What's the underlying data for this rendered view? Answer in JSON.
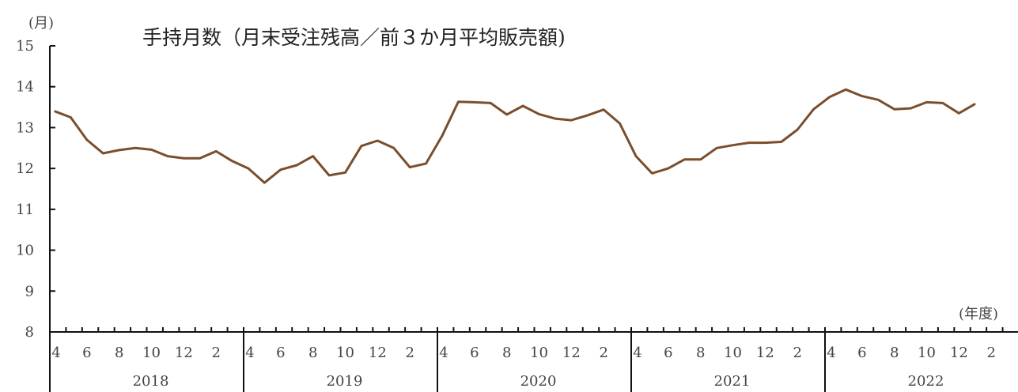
{
  "chart_data": {
    "type": "line",
    "title": "手持月数（月末受注残高／前３か月平均販売額)",
    "ylabel": "(月)",
    "xlabel": "(年度)",
    "ylim": [
      8,
      15
    ],
    "yticks": [
      8,
      9,
      10,
      11,
      12,
      13,
      14,
      15
    ],
    "grid": false,
    "fiscal_years": [
      "2018",
      "2019",
      "2020",
      "2021",
      "2022"
    ],
    "month_ticks": [
      "4",
      "6",
      "8",
      "10",
      "12",
      "2"
    ],
    "series": [
      {
        "color": "#7a4e2d",
        "points": [
          {
            "fy": "2018",
            "m": 4,
            "v": 13.4
          },
          {
            "fy": "2018",
            "m": 5,
            "v": 13.25
          },
          {
            "fy": "2018",
            "m": 6,
            "v": 12.7
          },
          {
            "fy": "2018",
            "m": 7,
            "v": 12.37
          },
          {
            "fy": "2018",
            "m": 8,
            "v": 12.45
          },
          {
            "fy": "2018",
            "m": 9,
            "v": 12.5
          },
          {
            "fy": "2018",
            "m": 10,
            "v": 12.46
          },
          {
            "fy": "2018",
            "m": 11,
            "v": 12.3
          },
          {
            "fy": "2018",
            "m": 12,
            "v": 12.25
          },
          {
            "fy": "2018",
            "m": 1,
            "v": 12.25
          },
          {
            "fy": "2018",
            "m": 2,
            "v": 12.42
          },
          {
            "fy": "2018",
            "m": 3,
            "v": 12.18
          },
          {
            "fy": "2019",
            "m": 4,
            "v": 12.0
          },
          {
            "fy": "2019",
            "m": 5,
            "v": 11.65
          },
          {
            "fy": "2019",
            "m": 6,
            "v": 11.97
          },
          {
            "fy": "2019",
            "m": 7,
            "v": 12.08
          },
          {
            "fy": "2019",
            "m": 8,
            "v": 12.3
          },
          {
            "fy": "2019",
            "m": 9,
            "v": 11.83
          },
          {
            "fy": "2019",
            "m": 10,
            "v": 11.9
          },
          {
            "fy": "2019",
            "m": 11,
            "v": 12.55
          },
          {
            "fy": "2019",
            "m": 12,
            "v": 12.68
          },
          {
            "fy": "2019",
            "m": 1,
            "v": 12.5
          },
          {
            "fy": "2019",
            "m": 2,
            "v": 12.03
          },
          {
            "fy": "2019",
            "m": 3,
            "v": 12.12
          },
          {
            "fy": "2020",
            "m": 4,
            "v": 12.8
          },
          {
            "fy": "2020",
            "m": 5,
            "v": 13.63
          },
          {
            "fy": "2020",
            "m": 6,
            "v": 13.62
          },
          {
            "fy": "2020",
            "m": 7,
            "v": 13.6
          },
          {
            "fy": "2020",
            "m": 8,
            "v": 13.32
          },
          {
            "fy": "2020",
            "m": 9,
            "v": 13.53
          },
          {
            "fy": "2020",
            "m": 10,
            "v": 13.33
          },
          {
            "fy": "2020",
            "m": 11,
            "v": 13.22
          },
          {
            "fy": "2020",
            "m": 12,
            "v": 13.18
          },
          {
            "fy": "2020",
            "m": 1,
            "v": 13.3
          },
          {
            "fy": "2020",
            "m": 2,
            "v": 13.44
          },
          {
            "fy": "2020",
            "m": 3,
            "v": 13.1
          },
          {
            "fy": "2021",
            "m": 4,
            "v": 12.3
          },
          {
            "fy": "2021",
            "m": 5,
            "v": 11.88
          },
          {
            "fy": "2021",
            "m": 6,
            "v": 12.0
          },
          {
            "fy": "2021",
            "m": 7,
            "v": 12.22
          },
          {
            "fy": "2021",
            "m": 8,
            "v": 12.22
          },
          {
            "fy": "2021",
            "m": 9,
            "v": 12.5
          },
          {
            "fy": "2021",
            "m": 10,
            "v": 12.57
          },
          {
            "fy": "2021",
            "m": 11,
            "v": 12.63
          },
          {
            "fy": "2021",
            "m": 12,
            "v": 12.63
          },
          {
            "fy": "2021",
            "m": 1,
            "v": 12.65
          },
          {
            "fy": "2021",
            "m": 2,
            "v": 12.95
          },
          {
            "fy": "2021",
            "m": 3,
            "v": 13.45
          },
          {
            "fy": "2022",
            "m": 4,
            "v": 13.75
          },
          {
            "fy": "2022",
            "m": 5,
            "v": 13.93
          },
          {
            "fy": "2022",
            "m": 6,
            "v": 13.77
          },
          {
            "fy": "2022",
            "m": 7,
            "v": 13.68
          },
          {
            "fy": "2022",
            "m": 8,
            "v": 13.45
          },
          {
            "fy": "2022",
            "m": 9,
            "v": 13.47
          },
          {
            "fy": "2022",
            "m": 10,
            "v": 13.62
          },
          {
            "fy": "2022",
            "m": 11,
            "v": 13.6
          },
          {
            "fy": "2022",
            "m": 12,
            "v": 13.35
          },
          {
            "fy": "2022",
            "m": 1,
            "v": 13.58
          }
        ]
      }
    ]
  }
}
